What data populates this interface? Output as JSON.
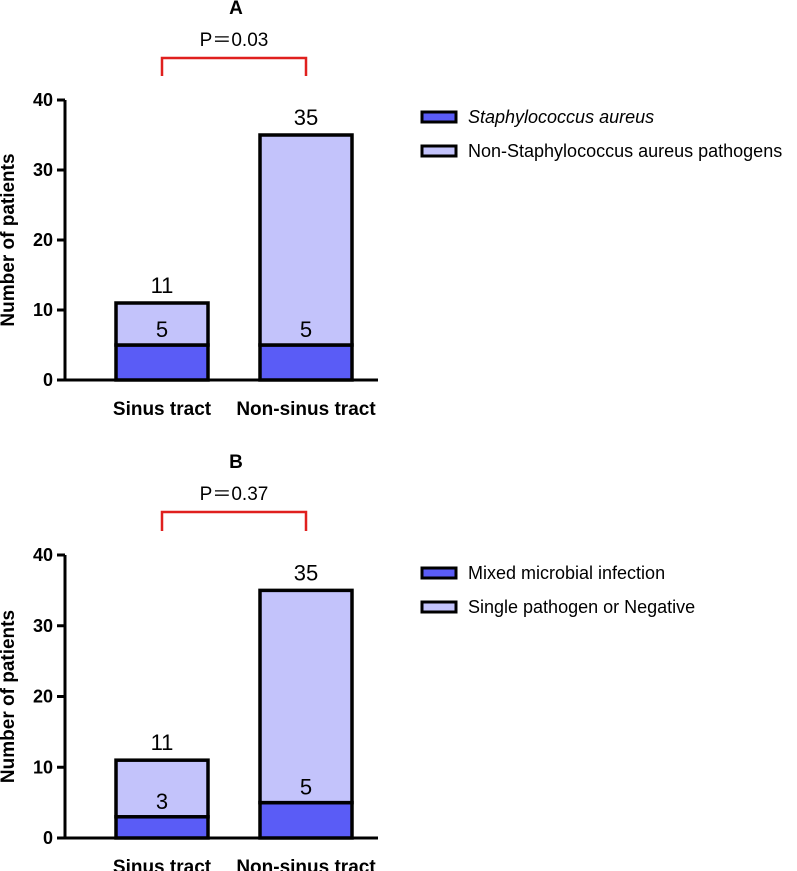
{
  "colors": {
    "segment_bottom": "#5a5cf6",
    "segment_top": "#c3c3fb",
    "bracket": "#e0201e",
    "axis": "#000000"
  },
  "chart_data": [
    {
      "type": "bar",
      "stacked": true,
      "title": "A",
      "pvalue_label": "P＝0.03",
      "ylabel": "Number of patients",
      "ylim": [
        0,
        40
      ],
      "yticks": [
        "0",
        "10",
        "20",
        "30",
        "40"
      ],
      "categories": [
        "Sinus tract",
        "Non-sinus tract"
      ],
      "totals": [
        11,
        35
      ],
      "series": [
        {
          "name": "Staphylococcus aureus",
          "italic": true,
          "values": [
            5,
            5
          ]
        },
        {
          "name": "Non-Staphylococcus aureus pathogens",
          "italic": false,
          "values": [
            6,
            30
          ]
        }
      ],
      "bottom_labels": [
        "5",
        "5"
      ],
      "total_labels": [
        "11",
        "35"
      ],
      "legend_position": "right"
    },
    {
      "type": "bar",
      "stacked": true,
      "title": "B",
      "pvalue_label": "P＝0.37",
      "ylabel": "Number of patients",
      "ylim": [
        0,
        40
      ],
      "yticks": [
        "0",
        "10",
        "20",
        "30",
        "40"
      ],
      "categories": [
        "Sinus tract",
        "Non-sinus tract"
      ],
      "totals": [
        11,
        35
      ],
      "series": [
        {
          "name": "Mixed microbial infection",
          "italic": false,
          "values": [
            3,
            5
          ]
        },
        {
          "name": "Single pathogen or Negative",
          "italic": false,
          "values": [
            8,
            30
          ]
        }
      ],
      "bottom_labels": [
        "3",
        "5"
      ],
      "total_labels": [
        "11",
        "35"
      ],
      "legend_position": "right"
    }
  ]
}
